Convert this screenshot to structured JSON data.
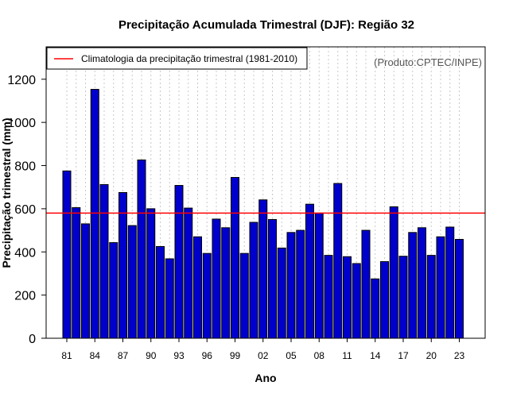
{
  "chart_data": {
    "type": "bar",
    "title": "Precipitação Acumulada Trimestral (DJF): Região 32",
    "xlabel": "Ano",
    "ylabel": "Precipitação trimestral (mm)",
    "source": "(Produto:CPTEC/INPE)",
    "legend": {
      "label": "Climatologia da precipitação trimestral (1981-2010)",
      "placement": "top-left"
    },
    "ylim": [
      0,
      1350
    ],
    "yticks": [
      "0",
      "200",
      "400",
      "600",
      "800",
      "1000",
      "1200"
    ],
    "ytick_values": [
      0,
      200,
      400,
      600,
      800,
      1000,
      1200
    ],
    "xtick_labels": [
      "81",
      "84",
      "87",
      "90",
      "93",
      "96",
      "99",
      "02",
      "05",
      "08",
      "11",
      "14",
      "17",
      "20",
      "23"
    ],
    "categories": [
      "1981",
      "1982",
      "1983",
      "1984",
      "1985",
      "1986",
      "1987",
      "1988",
      "1989",
      "1990",
      "1991",
      "1992",
      "1993",
      "1994",
      "1995",
      "1996",
      "1997",
      "1998",
      "1999",
      "2000",
      "2001",
      "2002",
      "2003",
      "2004",
      "2005",
      "2006",
      "2007",
      "2008",
      "2009",
      "2010",
      "2011",
      "2012",
      "2013",
      "2014",
      "2015",
      "2016",
      "2017",
      "2018",
      "2019",
      "2020",
      "2021",
      "2022",
      "2023"
    ],
    "values": [
      775,
      605,
      530,
      1153,
      712,
      443,
      675,
      522,
      826,
      600,
      425,
      368,
      708,
      603,
      470,
      393,
      552,
      512,
      745,
      393,
      537,
      641,
      550,
      418,
      490,
      500,
      621,
      580,
      384,
      717,
      378,
      346,
      500,
      275,
      355,
      609,
      380,
      490,
      512,
      384,
      470,
      515,
      458
    ],
    "climatology": 580,
    "grid": "vertical dotted",
    "colors": {
      "bar_fill": "#0000CD",
      "bar_stroke": "#000000",
      "climatology_line": "#FF0000",
      "grid": "#C8C8C8"
    }
  }
}
